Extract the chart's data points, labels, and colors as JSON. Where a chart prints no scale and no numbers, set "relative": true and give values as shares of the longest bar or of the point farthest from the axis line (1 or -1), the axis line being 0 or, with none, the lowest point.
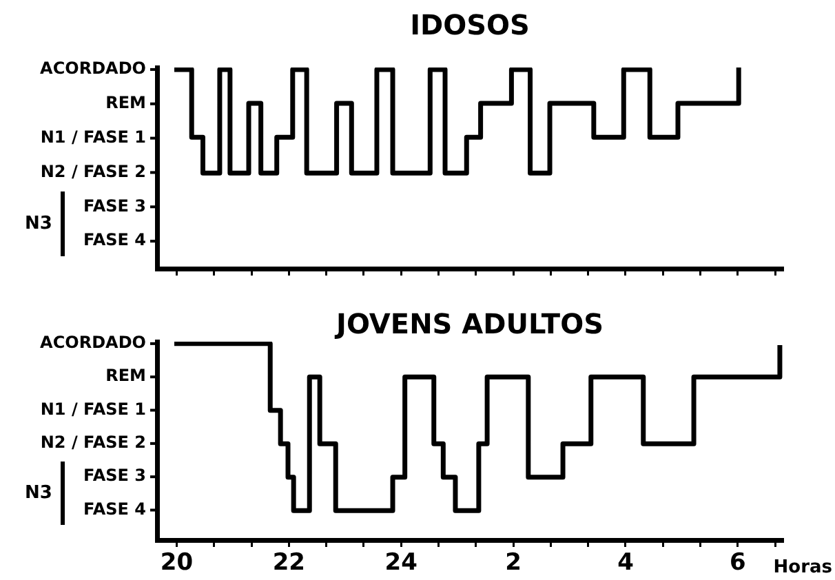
{
  "chart_data": [
    {
      "type": "step",
      "title": "IDOSOS",
      "relative": true,
      "series": [
        {
          "color": "#000000",
          "x": [
            "--01-01T20:00",
            "--01-01T20:16",
            "--01-01T20:28",
            "--01-01T20:46",
            "--01-01T20:57",
            "--01-01T21:17",
            "--01-01T21:30",
            "--01-01T21:47",
            "--01-01T22:04",
            "--01-01T22:19",
            "--01-01T22:51",
            "--01-01T23:07",
            "--01-01T23:34",
            "--01-01T23:51",
            "--01-02T00:31",
            "--01-02T00:47",
            "--01-02T01:10",
            "--01-02T01:25",
            "--01-02T01:58",
            "--01-02T02:18",
            "--01-02T02:39",
            "--01-02T03:26",
            "--01-02T03:58",
            "--01-02T04:26",
            "--01-02T04:56",
            "--01-02T06:01"
          ],
          "values": [
            1,
            0.66,
            0.48,
            1,
            0.48,
            0.83,
            0.48,
            0.66,
            1,
            0.48,
            0.83,
            0.48,
            1,
            0.48,
            1,
            0.48,
            0.66,
            0.83,
            1,
            0.48,
            0.83,
            0.66,
            1,
            0.66,
            0.83,
            1
          ]
        }
      ],
      "xlim": [
        "--01-01T19:39",
        "--01-02T06:48"
      ],
      "xticks": [
        "--01-01T20:00",
        "--01-01T20:40",
        "--01-01T21:20",
        "--01-01T22:00",
        "--01-01T22:40",
        "--01-01T23:20",
        "--01-02T00:00",
        "--01-02T00:40",
        "--01-02T01:20",
        "--01-02T02:00",
        "--01-02T02:40",
        "--01-02T03:20",
        "--01-02T04:00",
        "--01-02T04:40",
        "--01-02T05:20",
        "--01-02T06:00",
        "--01-02T06:40"
      ],
      "tick_labels": false,
      "annotations": [
        "ACORDADO",
        "REM",
        "N1 / FASE 1",
        "N2 / FASE 2",
        "FASE 3",
        "FASE 4",
        "N3"
      ]
    },
    {
      "type": "step",
      "title": "JOVENS ADULTOS",
      "xlabel": "Horas",
      "relative": true,
      "series": [
        {
          "color": "#000000",
          "x": [
            "--01-01T20:00",
            "--01-01T21:40",
            "--01-01T21:51",
            "--01-01T21:59",
            "--01-01T22:05",
            "--01-01T22:22",
            "--01-01T22:33",
            "--01-01T22:50",
            "--01-01T23:51",
            "--01-02T00:04",
            "--01-02T00:35",
            "--01-02T00:45",
            "--01-02T00:58",
            "--01-02T01:23",
            "--01-02T01:32",
            "--01-02T02:16",
            "--01-02T02:53",
            "--01-02T03:23",
            "--01-02T04:19",
            "--01-02T05:13",
            "--01-02T06:45"
          ],
          "values": [
            1,
            0.66,
            0.49,
            0.32,
            0.15,
            0.83,
            0.49,
            0.15,
            0.32,
            0.83,
            0.49,
            0.32,
            0.15,
            0.49,
            0.83,
            0.32,
            0.49,
            0.83,
            0.49,
            0.83,
            0.98
          ]
        }
      ],
      "xlim": [
        "--01-01T19:39",
        "--01-02T06:48"
      ],
      "xticks": [
        {
          "value": "--01-01T20:00",
          "label": "20"
        },
        {
          "value": "--01-01T20:40",
          "label": null
        },
        {
          "value": "--01-01T21:20",
          "label": null
        },
        {
          "value": "--01-01T22:00",
          "label": "22"
        },
        {
          "value": "--01-01T22:40",
          "label": null
        },
        {
          "value": "--01-01T23:20",
          "label": null
        },
        {
          "value": "--01-02T00:00",
          "label": "24"
        },
        {
          "value": "--01-02T00:40",
          "label": null
        },
        {
          "value": "--01-02T01:20",
          "label": null
        },
        {
          "value": "--01-02T02:00",
          "label": "2"
        },
        {
          "value": "--01-02T02:40",
          "label": null
        },
        {
          "value": "--01-02T03:20",
          "label": null
        },
        {
          "value": "--01-02T04:00",
          "label": "4"
        },
        {
          "value": "--01-02T04:40",
          "label": null
        },
        {
          "value": "--01-02T05:20",
          "label": null
        },
        {
          "value": "--01-02T06:00",
          "label": "6"
        },
        {
          "value": "--01-02T06:40",
          "label": null
        }
      ],
      "tick_labels": "x",
      "annotations": [
        "ACORDADO",
        "REM",
        "N1 / FASE 1",
        "N2 / FASE 2",
        "FASE 3",
        "FASE 4",
        "N3"
      ]
    }
  ]
}
